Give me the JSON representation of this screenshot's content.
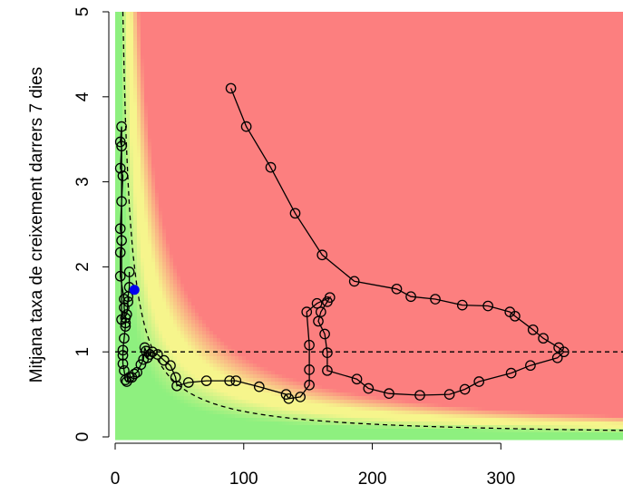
{
  "chart_data": {
    "type": "line",
    "title": "",
    "xlabel": "",
    "ylabel": "Mitjana taxa de creixement darrers 7 dies",
    "xlim": [
      0,
      395
    ],
    "ylim": [
      0,
      5
    ],
    "x_ticks": [
      0,
      100,
      200,
      300
    ],
    "y_ticks": [
      0,
      1,
      2,
      3,
      4,
      5
    ],
    "grid": false,
    "legend": "none",
    "background_zones": {
      "description": "risk heatmap: green (low) to yellow to red (high)",
      "colors": {
        "low": "#8ef07f",
        "mid": "#f6f58c",
        "high": "#fc7f7f"
      }
    },
    "reference_lines": [
      {
        "kind": "horizontal",
        "y": 1,
        "style": "dashed"
      },
      {
        "kind": "curve",
        "formula": "y = 30 / x",
        "style": "dashed"
      }
    ],
    "series": [
      {
        "marker": "open-circle",
        "color": "#000000",
        "points": [
          [
            90,
            4.1
          ],
          [
            102,
            3.65
          ],
          [
            121,
            3.17
          ],
          [
            140,
            2.63
          ],
          [
            161,
            2.14
          ],
          [
            186,
            1.83
          ],
          [
            219,
            1.74
          ],
          [
            230,
            1.65
          ],
          [
            249,
            1.62
          ],
          [
            270,
            1.55
          ],
          [
            290,
            1.54
          ],
          [
            307,
            1.47
          ],
          [
            311,
            1.42
          ],
          [
            325,
            1.26
          ],
          [
            333,
            1.16
          ],
          [
            345,
            1.05
          ],
          [
            349,
            1.0
          ],
          [
            344,
            0.93
          ],
          [
            323,
            0.84
          ],
          [
            308,
            0.75
          ],
          [
            283,
            0.65
          ],
          [
            272,
            0.56
          ],
          [
            260,
            0.5
          ],
          [
            237,
            0.49
          ],
          [
            213,
            0.51
          ],
          [
            197,
            0.57
          ],
          [
            188,
            0.68
          ],
          [
            165,
            0.78
          ],
          [
            165,
            0.99
          ],
          [
            163,
            1.21
          ],
          [
            158,
            1.36
          ],
          [
            160,
            1.47
          ],
          [
            165,
            1.59
          ],
          [
            167,
            1.64
          ],
          [
            157,
            1.57
          ],
          [
            149,
            1.47
          ],
          [
            151,
            1.08
          ],
          [
            151,
            0.79
          ],
          [
            151,
            0.61
          ],
          [
            144,
            0.47
          ],
          [
            135,
            0.45
          ],
          [
            133,
            0.5
          ],
          [
            112,
            0.59
          ],
          [
            94,
            0.66
          ],
          [
            89,
            0.66
          ],
          [
            71,
            0.66
          ],
          [
            57,
            0.64
          ],
          [
            48,
            0.6
          ],
          [
            47,
            0.7
          ],
          [
            43,
            0.84
          ],
          [
            38,
            0.9
          ],
          [
            33,
            0.97
          ],
          [
            29,
            1.0
          ],
          [
            27,
            0.97
          ],
          [
            25,
            0.93
          ],
          [
            24,
            1.01
          ],
          [
            23,
            1.05
          ],
          [
            22,
            0.91
          ],
          [
            20,
            0.85
          ],
          [
            17,
            0.76
          ],
          [
            15,
            0.74
          ],
          [
            13,
            0.7
          ],
          [
            11,
            0.7
          ],
          [
            9,
            0.65
          ],
          [
            8,
            0.67
          ],
          [
            7,
            0.78
          ],
          [
            6,
            0.86
          ],
          [
            6,
            0.96
          ],
          [
            6,
            1.02
          ],
          [
            7,
            1.16
          ],
          [
            8,
            1.3
          ],
          [
            8,
            1.34
          ],
          [
            8,
            1.4
          ],
          [
            7,
            1.52
          ],
          [
            7,
            1.62
          ],
          [
            4,
            1.89
          ],
          [
            4,
            2.17
          ],
          [
            5,
            2.31
          ],
          [
            4,
            2.45
          ],
          [
            5,
            2.77
          ],
          [
            6,
            3.07
          ],
          [
            4,
            3.16
          ],
          [
            5,
            3.42
          ],
          [
            4,
            3.47
          ],
          [
            5,
            3.65
          ],
          [
            5,
            1.38
          ],
          [
            9,
            1.44
          ],
          [
            10,
            1.59
          ],
          [
            10,
            1.65
          ],
          [
            11,
            1.76
          ],
          [
            11,
            1.94
          ]
        ]
      }
    ],
    "highlight_point": {
      "x": 15,
      "y": 1.73,
      "color": "#0000ee"
    }
  }
}
